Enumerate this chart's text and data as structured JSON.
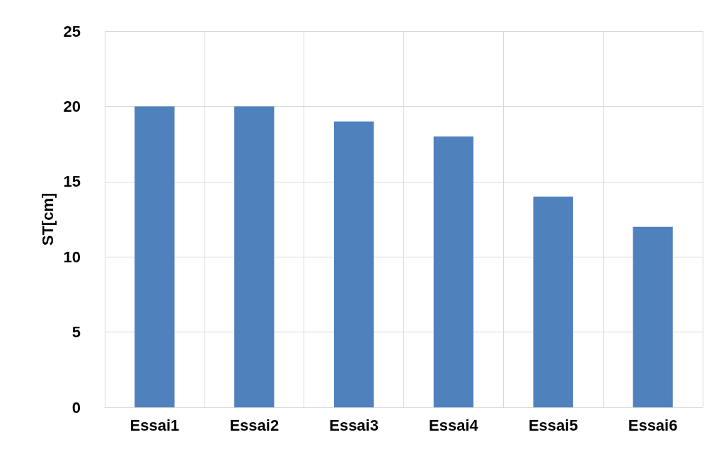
{
  "chart_data": {
    "type": "bar",
    "ylabel": "ST[cm]",
    "categories": [
      "Essai1",
      "Essai2",
      "Essai3",
      "Essai4",
      "Essai5",
      "Essai6"
    ],
    "values": [
      20,
      20,
      19,
      18,
      14,
      12
    ],
    "color": "#4f81bd",
    "ylim": [
      0,
      25
    ],
    "yticks": [
      0,
      5,
      10,
      15,
      20,
      25
    ],
    "grid": true
  }
}
